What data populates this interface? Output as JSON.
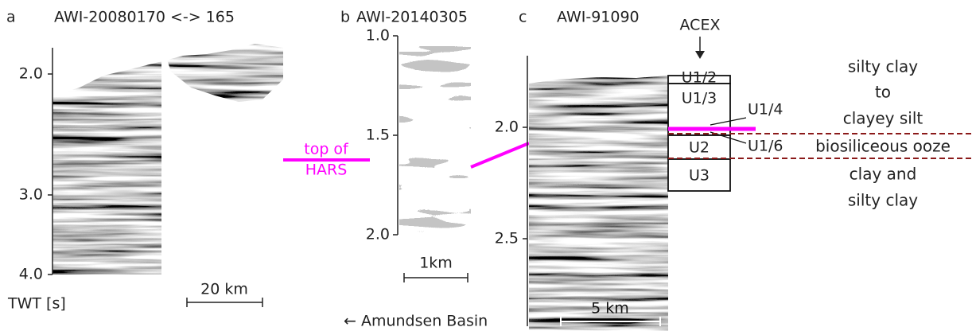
{
  "panels": [
    {
      "letter": "a",
      "title": "AWI-20080170 <-> 165",
      "ticks": [
        "2.0",
        "3.0",
        "4.0"
      ],
      "axis_label": "TWT [s]",
      "scale": "20 km"
    },
    {
      "letter": "b",
      "title": "AWI-20140305",
      "ticks": [
        "1.0",
        "1.5",
        "2.0"
      ],
      "scale": "1km"
    },
    {
      "letter": "c",
      "title": "AWI-91090",
      "ticks": [
        "2.0",
        "2.5"
      ],
      "scale": "5 km"
    }
  ],
  "horizon": [
    "top of",
    "HARS"
  ],
  "core": {
    "title": "ACEX",
    "units": [
      "U1/2",
      "U1/3",
      "U2",
      "U3"
    ],
    "callouts": [
      "U1/4",
      "U1/6"
    ]
  },
  "lithology": [
    "silty clay",
    "to",
    "clayey silt",
    "biosiliceous ooze",
    "clay and",
    "silty clay"
  ],
  "direction": "← Amundsen Basin"
}
